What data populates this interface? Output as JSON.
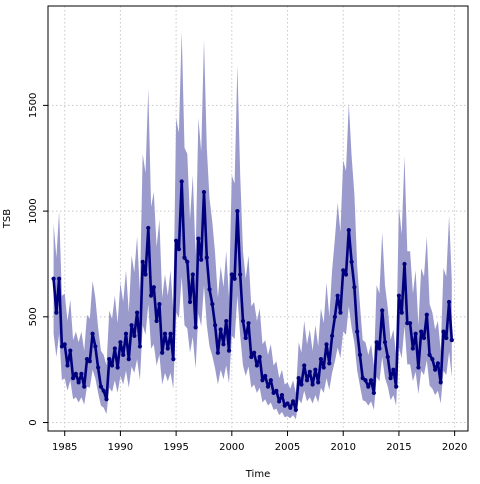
{
  "chart_data": {
    "type": "line",
    "title": "",
    "xlabel": "Time",
    "ylabel": "TSB",
    "xlim": [
      1983.5,
      2021.2
    ],
    "ylim": [
      -40,
      1970
    ],
    "x_ticks": [
      1985,
      1990,
      1995,
      2000,
      2005,
      2010,
      2015,
      2020
    ],
    "y_ticks": [
      0,
      500,
      1000,
      1500
    ],
    "grid": true,
    "legend": "none",
    "colors": {
      "band": "#9a9acc",
      "line": "#00007f",
      "grid": "#c8c8c8"
    },
    "series": [
      {
        "type": "line",
        "markers": true,
        "x": [
          1984.0,
          1984.25,
          1984.5,
          1984.75,
          1985.0,
          1985.25,
          1985.5,
          1985.75,
          1986.0,
          1986.25,
          1986.5,
          1986.75,
          1987.0,
          1987.25,
          1987.5,
          1987.75,
          1988.0,
          1988.25,
          1988.5,
          1988.75,
          1989.0,
          1989.25,
          1989.5,
          1989.75,
          1990.0,
          1990.25,
          1990.5,
          1990.75,
          1991.0,
          1991.25,
          1991.5,
          1991.75,
          1992.0,
          1992.25,
          1992.5,
          1992.75,
          1993.0,
          1993.25,
          1993.5,
          1993.75,
          1994.0,
          1994.25,
          1994.5,
          1994.75,
          1995.0,
          1995.25,
          1995.5,
          1995.75,
          1996.0,
          1996.25,
          1996.5,
          1996.75,
          1997.0,
          1997.25,
          1997.5,
          1997.75,
          1998.0,
          1998.25,
          1998.5,
          1998.75,
          1999.0,
          1999.25,
          1999.5,
          1999.75,
          2000.0,
          2000.25,
          2000.5,
          2000.75,
          2001.0,
          2001.25,
          2001.5,
          2001.75,
          2002.0,
          2002.25,
          2002.5,
          2002.75,
          2003.0,
          2003.25,
          2003.5,
          2003.75,
          2004.0,
          2004.25,
          2004.5,
          2004.75,
          2005.0,
          2005.25,
          2005.5,
          2005.75,
          2006.0,
          2006.25,
          2006.5,
          2006.75,
          2007.0,
          2007.25,
          2007.5,
          2007.75,
          2008.0,
          2008.25,
          2008.5,
          2008.75,
          2009.0,
          2009.25,
          2009.5,
          2009.75,
          2010.0,
          2010.25,
          2010.5,
          2010.75,
          2011.0,
          2011.25,
          2011.5,
          2011.75,
          2012.0,
          2012.25,
          2012.5,
          2012.75,
          2013.0,
          2013.25,
          2013.5,
          2013.75,
          2014.0,
          2014.25,
          2014.5,
          2014.75,
          2015.0,
          2015.25,
          2015.5,
          2015.75,
          2016.0,
          2016.25,
          2016.5,
          2016.75,
          2017.0,
          2017.25,
          2017.5,
          2017.75,
          2018.0,
          2018.25,
          2018.5,
          2018.75,
          2019.0,
          2019.25,
          2019.5,
          2019.75
        ],
        "y": [
          680,
          520,
          680,
          360,
          370,
          270,
          340,
          210,
          230,
          190,
          230,
          170,
          300,
          290,
          420,
          360,
          260,
          170,
          150,
          110,
          300,
          270,
          350,
          260,
          380,
          320,
          420,
          300,
          460,
          410,
          520,
          360,
          760,
          700,
          920,
          600,
          640,
          480,
          560,
          330,
          420,
          350,
          420,
          300,
          860,
          820,
          1140,
          780,
          760,
          570,
          700,
          450,
          870,
          770,
          1090,
          780,
          630,
          560,
          460,
          330,
          440,
          370,
          480,
          340,
          700,
          680,
          1000,
          700,
          480,
          400,
          470,
          310,
          330,
          270,
          310,
          200,
          220,
          170,
          200,
          140,
          150,
          100,
          130,
          80,
          90,
          70,
          100,
          60,
          210,
          180,
          270,
          200,
          240,
          180,
          250,
          190,
          300,
          260,
          370,
          280,
          410,
          500,
          600,
          520,
          720,
          700,
          910,
          760,
          640,
          430,
          320,
          210,
          200,
          170,
          200,
          140,
          380,
          350,
          530,
          380,
          310,
          210,
          250,
          170,
          600,
          520,
          750,
          470,
          470,
          350,
          420,
          260,
          430,
          400,
          510,
          320,
          300,
          250,
          280,
          190,
          430,
          400,
          570,
          390
        ]
      },
      {
        "type": "band",
        "x": [
          1984.0,
          1984.25,
          1984.5,
          1984.75,
          1985.0,
          1985.25,
          1985.5,
          1985.75,
          1986.0,
          1986.25,
          1986.5,
          1986.75,
          1987.0,
          1987.25,
          1987.5,
          1987.75,
          1988.0,
          1988.25,
          1988.5,
          1988.75,
          1989.0,
          1989.25,
          1989.5,
          1989.75,
          1990.0,
          1990.25,
          1990.5,
          1990.75,
          1991.0,
          1991.25,
          1991.5,
          1991.75,
          1992.0,
          1992.25,
          1992.5,
          1992.75,
          1993.0,
          1993.25,
          1993.5,
          1993.75,
          1994.0,
          1994.25,
          1994.5,
          1994.75,
          1995.0,
          1995.25,
          1995.5,
          1995.75,
          1996.0,
          1996.25,
          1996.5,
          1996.75,
          1997.0,
          1997.25,
          1997.5,
          1997.75,
          1998.0,
          1998.25,
          1998.5,
          1998.75,
          1999.0,
          1999.25,
          1999.5,
          1999.75,
          2000.0,
          2000.25,
          2000.5,
          2000.75,
          2001.0,
          2001.25,
          2001.5,
          2001.75,
          2002.0,
          2002.25,
          2002.5,
          2002.75,
          2003.0,
          2003.25,
          2003.5,
          2003.75,
          2004.0,
          2004.25,
          2004.5,
          2004.75,
          2005.0,
          2005.25,
          2005.5,
          2005.75,
          2006.0,
          2006.25,
          2006.5,
          2006.75,
          2007.0,
          2007.25,
          2007.5,
          2007.75,
          2008.0,
          2008.25,
          2008.5,
          2008.75,
          2009.0,
          2009.25,
          2009.5,
          2009.75,
          2010.0,
          2010.25,
          2010.5,
          2010.75,
          2011.0,
          2011.25,
          2011.5,
          2011.75,
          2012.0,
          2012.25,
          2012.5,
          2012.75,
          2013.0,
          2013.25,
          2013.5,
          2013.75,
          2014.0,
          2014.25,
          2014.5,
          2014.75,
          2015.0,
          2015.25,
          2015.5,
          2015.75,
          2016.0,
          2016.25,
          2016.5,
          2016.75,
          2017.0,
          2017.25,
          2017.5,
          2017.75,
          2018.0,
          2018.25,
          2018.5,
          2018.75,
          2019.0,
          2019.25,
          2019.5,
          2019.75
        ],
        "lower": [
          420,
          310,
          420,
          200,
          210,
          150,
          200,
          110,
          120,
          95,
          120,
          85,
          170,
          165,
          250,
          210,
          140,
          80,
          70,
          40,
          165,
          145,
          200,
          140,
          220,
          180,
          245,
          165,
          265,
          235,
          300,
          200,
          460,
          415,
          560,
          350,
          370,
          270,
          320,
          180,
          235,
          195,
          235,
          160,
          520,
          495,
          690,
          460,
          445,
          330,
          405,
          255,
          515,
          455,
          650,
          460,
          360,
          315,
          255,
          180,
          250,
          205,
          270,
          185,
          410,
          395,
          600,
          410,
          270,
          220,
          265,
          165,
          180,
          140,
          165,
          95,
          110,
          80,
          95,
          60,
          65,
          35,
          50,
          25,
          30,
          20,
          35,
          15,
          110,
          90,
          150,
          100,
          120,
          90,
          130,
          95,
          165,
          140,
          210,
          155,
          235,
          290,
          355,
          305,
          430,
          415,
          550,
          450,
          375,
          245,
          175,
          105,
          100,
          80,
          100,
          60,
          215,
          195,
          310,
          210,
          170,
          105,
          130,
          80,
          355,
          305,
          455,
          275,
          275,
          195,
          240,
          135,
          245,
          225,
          295,
          175,
          160,
          130,
          150,
          90,
          245,
          225,
          335,
          215
        ],
        "upper": [
          940,
          780,
          1000,
          600,
          610,
          480,
          580,
          390,
          430,
          380,
          430,
          340,
          510,
          490,
          670,
          590,
          450,
          340,
          320,
          270,
          530,
          490,
          600,
          470,
          660,
          570,
          720,
          520,
          790,
          710,
          880,
          620,
          1270,
          1180,
          1580,
          1020,
          1090,
          830,
          960,
          590,
          700,
          600,
          720,
          530,
          1440,
          1370,
          1850,
          1300,
          1270,
          960,
          1170,
          790,
          1440,
          1280,
          1810,
          1300,
          1060,
          950,
          800,
          590,
          740,
          640,
          810,
          590,
          1170,
          1130,
          1690,
          1170,
          810,
          680,
          790,
          550,
          570,
          480,
          540,
          370,
          390,
          320,
          370,
          270,
          290,
          210,
          250,
          180,
          190,
          160,
          200,
          140,
          380,
          330,
          480,
          370,
          440,
          340,
          460,
          360,
          540,
          470,
          660,
          500,
          720,
          870,
          1040,
          900,
          1240,
          1190,
          1510,
          1260,
          1080,
          740,
          560,
          390,
          380,
          320,
          370,
          270,
          650,
          610,
          900,
          650,
          540,
          390,
          440,
          320,
          1020,
          890,
          1260,
          810,
          810,
          610,
          720,
          460,
          730,
          690,
          880,
          560,
          520,
          440,
          480,
          340,
          730,
          690,
          980,
          670
        ]
      }
    ]
  }
}
